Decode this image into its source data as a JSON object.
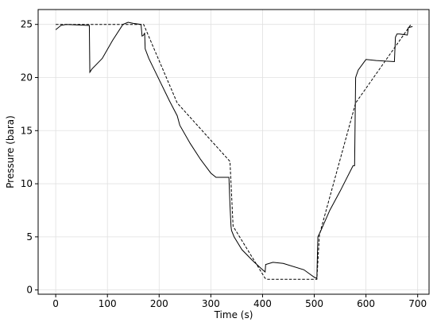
{
  "chart_data": {
    "type": "line",
    "x_label": "Time (s)",
    "y_label": "Pressure (bara)",
    "xlim": [
      -34,
      722
    ],
    "ylim": [
      -0.4,
      26.4
    ],
    "xticks": [
      0,
      100,
      200,
      300,
      400,
      500,
      600,
      700
    ],
    "yticks": [
      0,
      5,
      10,
      15,
      20,
      25
    ],
    "grid": true,
    "series": [
      {
        "color": "#000000",
        "style": "solid",
        "x": [
          0,
          10,
          20,
          65,
          66,
          70,
          90,
          110,
          130,
          140,
          150,
          165,
          167,
          170,
          172,
          173,
          180,
          200,
          220,
          235,
          240,
          260,
          280,
          300,
          310,
          335,
          337,
          339,
          340,
          345,
          360,
          380,
          400,
          405,
          406,
          420,
          440,
          480,
          500,
          505,
          507,
          512,
          530,
          550,
          575,
          578,
          580,
          585,
          600,
          620,
          655,
          657,
          660,
          665,
          680,
          682,
          690
        ],
        "values": [
          24.5,
          24.9,
          25,
          24.9,
          20.5,
          20.8,
          21.8,
          23.5,
          25,
          25.2,
          25.1,
          25,
          23.9,
          24,
          24.2,
          22.7,
          21.8,
          19.8,
          17.8,
          16.4,
          15.5,
          13.8,
          12.3,
          11,
          10.6,
          10.6,
          8,
          6,
          5.6,
          5,
          3.8,
          2.8,
          1.9,
          1.7,
          2.4,
          2.6,
          2.5,
          1.9,
          1.2,
          1.1,
          5,
          5.5,
          7.5,
          9.3,
          11.7,
          11.7,
          20,
          20.7,
          21.7,
          21.6,
          21.5,
          23.8,
          24.1,
          24.1,
          24,
          24.7,
          24.8
        ]
      },
      {
        "color": "#000000",
        "style": "dashed",
        "x": [
          0,
          170,
          235,
          337,
          343,
          405,
          410,
          505,
          510,
          580,
          687
        ],
        "values": [
          25,
          25,
          17.6,
          12.1,
          6,
          1.1,
          1,
          1,
          5.2,
          17.6,
          25
        ]
      }
    ]
  }
}
